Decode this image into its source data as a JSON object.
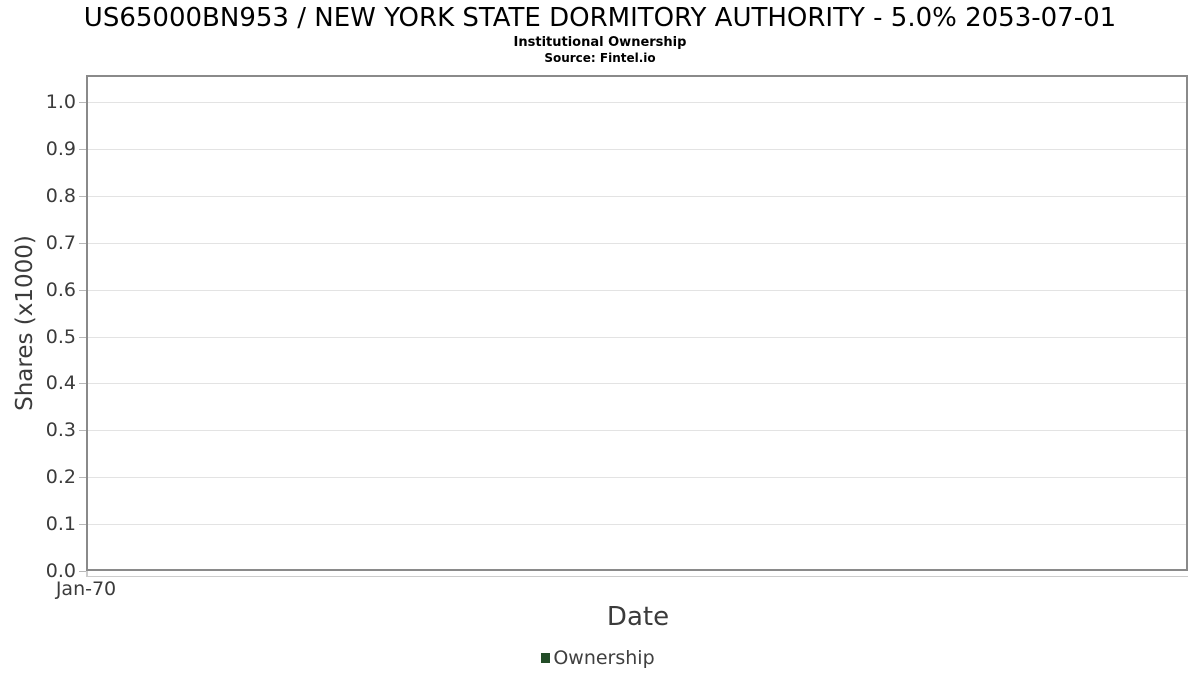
{
  "header": {
    "title": "US65000BN953 / NEW YORK STATE DORMITORY AUTHORITY - 5.0% 2053-07-01",
    "subtitle": "Institutional Ownership",
    "source": "Source: Fintel.io"
  },
  "chart_data": {
    "type": "line",
    "title": "US65000BN953 / NEW YORK STATE DORMITORY AUTHORITY - 5.0% 2053-07-01",
    "subtitle": "Institutional Ownership",
    "source": "Source: Fintel.io",
    "xlabel": "Date",
    "ylabel": "Shares (x1000)",
    "x_ticks": [
      "Jan-70"
    ],
    "y_tick_labels": [
      "0.0",
      "0.1",
      "0.2",
      "0.3",
      "0.4",
      "0.5",
      "0.6",
      "0.7",
      "0.8",
      "0.9",
      "1.0"
    ],
    "ylim": [
      0.0,
      1.06
    ],
    "xlim_note": "single tick at left edge, no data plotted",
    "grid": true,
    "legend": {
      "position": "bottom-center",
      "entries": [
        {
          "label": "Ownership",
          "color": "#234d28"
        }
      ]
    },
    "series": [
      {
        "name": "Ownership",
        "x": [],
        "values": []
      }
    ],
    "colors": {
      "legend_marker": "#234d28",
      "grid_line": "#e3e3e3",
      "plot_border": "#8a8a8a",
      "tick_mark": "#b8b8b8",
      "axis_sub_line": "#cccccc",
      "axis_text": "#3b3b3b",
      "title_text": "#000000"
    }
  }
}
